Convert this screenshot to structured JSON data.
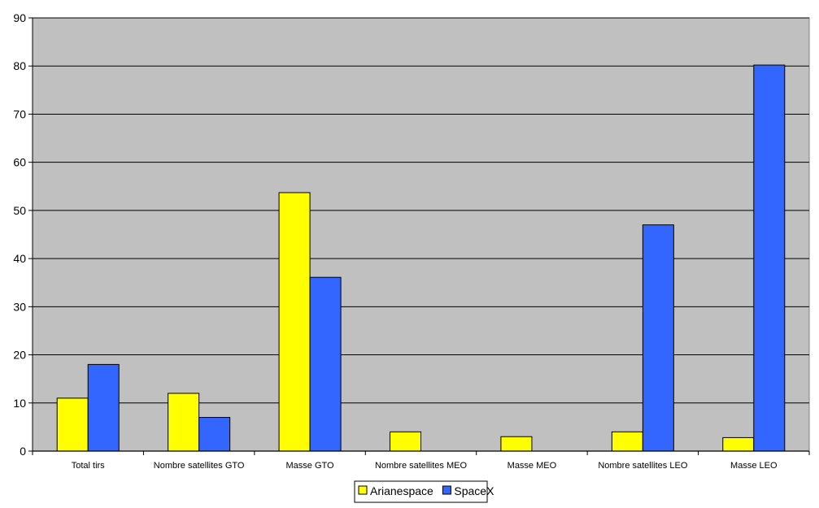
{
  "chart_data": {
    "type": "bar",
    "categories": [
      "Total tirs",
      "Nombre satellites GTO",
      "Masse GTO",
      "Nombre satellites MEO",
      "Masse MEO",
      "Nombre satellites LEO",
      "Masse LEO"
    ],
    "series": [
      {
        "name": "Arianespace",
        "color": "#ffff00",
        "values": [
          11,
          12,
          53.7,
          4,
          3,
          4,
          2.8
        ]
      },
      {
        "name": "SpaceX",
        "color": "#3366ff",
        "values": [
          18,
          7,
          36.1,
          0,
          0,
          47,
          80.2
        ]
      }
    ],
    "title": "",
    "xlabel": "",
    "ylabel": "",
    "ylim": [
      0,
      90
    ],
    "yticks": [
      0,
      10,
      20,
      30,
      40,
      50,
      60,
      70,
      80,
      90
    ],
    "grid": true,
    "legend": "bottom-center",
    "plot_background": "#c0c0c0"
  }
}
